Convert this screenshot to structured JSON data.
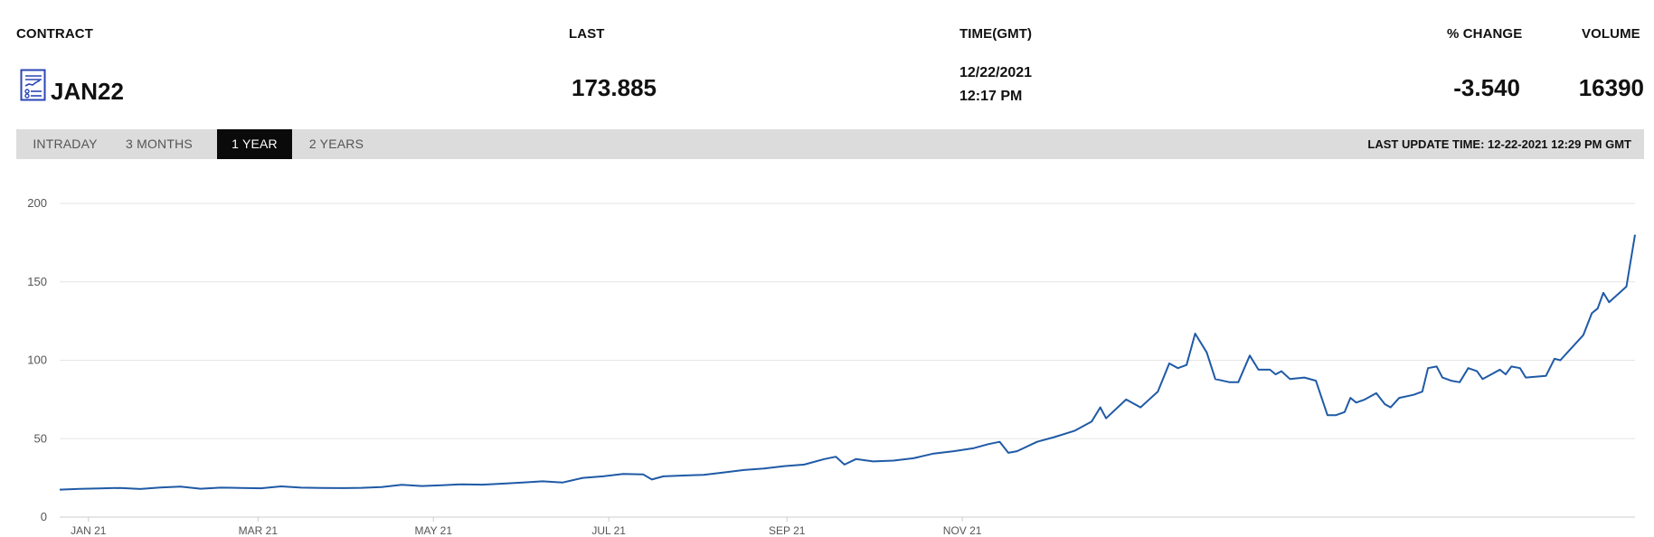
{
  "header": {
    "contract_label": "CONTRACT",
    "last_label": "LAST",
    "time_label": "TIME(GMT)",
    "change_label": "% CHANGE",
    "volume_label": "VOLUME"
  },
  "quote": {
    "contract": "JAN22",
    "last": "173.885",
    "date": "12/22/2021",
    "time": "12:17 PM",
    "change": "-3.540",
    "volume": "16390"
  },
  "icons": {
    "contract_icon": "report-document-icon"
  },
  "tabs": [
    {
      "label": "INTRADAY",
      "active": false
    },
    {
      "label": "3 MONTHS",
      "active": false
    },
    {
      "label": "1 YEAR",
      "active": true
    },
    {
      "label": "2 YEARS",
      "active": false
    }
  ],
  "last_update": "LAST UPDATE TIME: 12-22-2021 12:29 PM GMT",
  "colors": {
    "line": "#1f5aa6",
    "icon": "#2b46b5",
    "tab_active_bg": "#0a0a0a",
    "tab_bar_bg": "#dcdcdc",
    "grid": "#e6e6e6"
  },
  "chart_data": {
    "type": "line",
    "title": "",
    "xlabel": "",
    "ylabel": "",
    "ylim": [
      0,
      200
    ],
    "yticks": [
      0,
      50,
      100,
      150,
      200
    ],
    "xticks": [
      {
        "label": "JAN 21",
        "date": "2021-01-01"
      },
      {
        "label": "MAR 21",
        "date": "2021-03-01"
      },
      {
        "label": "MAY 21",
        "date": "2021-05-01"
      },
      {
        "label": "JUL 21",
        "date": "2021-07-01"
      },
      {
        "label": "SEP 21",
        "date": "2021-09-01"
      },
      {
        "label": "NOV 21",
        "date": "2021-11-01"
      }
    ],
    "grid": true,
    "legend": "none",
    "series": [
      {
        "points": [
          [
            "2020-12-22",
            17.5
          ],
          [
            "2020-12-29",
            18.0
          ],
          [
            "2021-01-05",
            18.3
          ],
          [
            "2021-01-12",
            18.6
          ],
          [
            "2021-01-19",
            17.9
          ],
          [
            "2021-01-26",
            18.9
          ],
          [
            "2021-02-02",
            19.5
          ],
          [
            "2021-02-09",
            18.1
          ],
          [
            "2021-02-16",
            18.8
          ],
          [
            "2021-02-23",
            18.6
          ],
          [
            "2021-03-02",
            18.4
          ],
          [
            "2021-03-09",
            19.6
          ],
          [
            "2021-03-16",
            18.8
          ],
          [
            "2021-03-23",
            18.6
          ],
          [
            "2021-03-30",
            18.5
          ],
          [
            "2021-04-06",
            18.7
          ],
          [
            "2021-04-13",
            19.2
          ],
          [
            "2021-04-20",
            20.6
          ],
          [
            "2021-04-27",
            19.8
          ],
          [
            "2021-05-04",
            20.3
          ],
          [
            "2021-05-11",
            20.9
          ],
          [
            "2021-05-18",
            20.7
          ],
          [
            "2021-05-25",
            21.3
          ],
          [
            "2021-06-01",
            22.0
          ],
          [
            "2021-06-08",
            22.8
          ],
          [
            "2021-06-15",
            22.1
          ],
          [
            "2021-06-22",
            25.0
          ],
          [
            "2021-06-29",
            26.0
          ],
          [
            "2021-07-06",
            27.5
          ],
          [
            "2021-07-13",
            27.2
          ],
          [
            "2021-07-16",
            24.0
          ],
          [
            "2021-07-20",
            26.0
          ],
          [
            "2021-07-27",
            26.5
          ],
          [
            "2021-08-03",
            27.0
          ],
          [
            "2021-08-10",
            28.5
          ],
          [
            "2021-08-17",
            30.0
          ],
          [
            "2021-08-24",
            31.0
          ],
          [
            "2021-08-31",
            32.5
          ],
          [
            "2021-09-07",
            33.5
          ],
          [
            "2021-09-14",
            37.0
          ],
          [
            "2021-09-18",
            38.5
          ],
          [
            "2021-09-21",
            33.5
          ],
          [
            "2021-09-25",
            37.0
          ],
          [
            "2021-10-01",
            35.5
          ],
          [
            "2021-10-08",
            36.0
          ],
          [
            "2021-10-15",
            37.5
          ],
          [
            "2021-10-22",
            40.5
          ],
          [
            "2021-10-29",
            42.0
          ],
          [
            "2021-11-05",
            44.0
          ],
          [
            "2021-11-10",
            46.5
          ],
          [
            "2021-11-14",
            48.0
          ],
          [
            "2021-11-17",
            41.0
          ],
          [
            "2021-11-20",
            42.0
          ],
          [
            "2021-11-27",
            48.0
          ],
          [
            "2021-12-03",
            51.0
          ],
          [
            "2021-12-10",
            55.0
          ],
          [
            "2021-12-16",
            61.0
          ],
          [
            "2021-12-19",
            70.0
          ],
          [
            "2021-12-21",
            63.0
          ],
          [
            "2021-12-28",
            75.0
          ],
          [
            "2022-01-02",
            70.0
          ],
          [
            "2022-01-08",
            80.0
          ],
          [
            "2022-01-12",
            98.0
          ],
          [
            "2022-01-15",
            95.0
          ],
          [
            "2022-01-18",
            97.0
          ],
          [
            "2022-01-21",
            117.0
          ],
          [
            "2022-01-25",
            105.0
          ],
          [
            "2022-01-28",
            88.0
          ],
          [
            "2022-02-02",
            86.0
          ],
          [
            "2022-02-05",
            86.0
          ],
          [
            "2022-02-09",
            103.0
          ],
          [
            "2022-02-12",
            94.0
          ],
          [
            "2022-02-16",
            94.0
          ],
          [
            "2022-02-18",
            91.0
          ],
          [
            "2022-02-20",
            93.0
          ],
          [
            "2022-02-23",
            88.0
          ],
          [
            "2022-02-28",
            89.0
          ],
          [
            "2022-03-04",
            87.0
          ],
          [
            "2022-03-08",
            65.0
          ],
          [
            "2022-03-11",
            65.0
          ],
          [
            "2022-03-14",
            67.0
          ],
          [
            "2022-03-16",
            76.0
          ],
          [
            "2022-03-18",
            73.0
          ],
          [
            "2022-03-21",
            75.0
          ],
          [
            "2022-03-25",
            79.0
          ],
          [
            "2022-03-28",
            72.0
          ],
          [
            "2022-03-30",
            70.0
          ],
          [
            "2022-04-02",
            76.0
          ],
          [
            "2022-04-07",
            78.0
          ],
          [
            "2022-04-10",
            80.0
          ],
          [
            "2022-04-12",
            95.0
          ],
          [
            "2022-04-15",
            96.0
          ],
          [
            "2022-04-17",
            89.0
          ],
          [
            "2022-04-20",
            87.0
          ],
          [
            "2022-04-23",
            86.0
          ],
          [
            "2022-04-26",
            95.0
          ],
          [
            "2022-04-29",
            93.0
          ],
          [
            "2022-05-01",
            88.0
          ],
          [
            "2022-05-04",
            91.0
          ],
          [
            "2022-05-07",
            94.0
          ],
          [
            "2022-05-09",
            91.0
          ],
          [
            "2022-05-11",
            96.0
          ],
          [
            "2022-05-14",
            95.0
          ],
          [
            "2022-05-16",
            89.0
          ],
          [
            "2022-05-23",
            90.0
          ],
          [
            "2022-05-26",
            101.0
          ],
          [
            "2022-05-28",
            100.0
          ],
          [
            "2022-05-31",
            106.0
          ],
          [
            "2022-06-05",
            116.0
          ],
          [
            "2022-06-08",
            130.0
          ],
          [
            "2022-06-10",
            133.0
          ],
          [
            "2022-06-12",
            143.0
          ],
          [
            "2022-06-14",
            137.0
          ],
          [
            "2022-06-20",
            147.0
          ],
          [
            "2022-06-23",
            180.0
          ]
        ]
      }
    ]
  }
}
